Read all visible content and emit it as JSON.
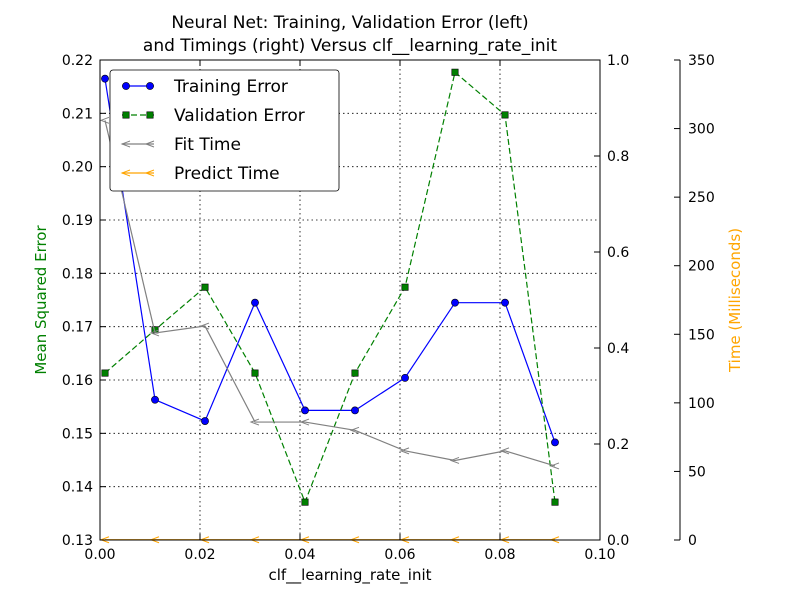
{
  "chart_data": {
    "type": "line",
    "title_line1": "Neural Net: Training, Validation Error (left)",
    "title_line2": "and Timings (right) Versus clf__learning_rate_init",
    "xlabel": "clf__learning_rate_init",
    "ylabel_left": "Mean Squared Error",
    "ylabel_right": "Time (Milliseconds)",
    "xlim": [
      0.0,
      0.1
    ],
    "ylim_left": [
      0.13,
      0.22
    ],
    "ylim_mid": [
      0.0,
      1.0
    ],
    "ylim_right": [
      0,
      350
    ],
    "x_ticks": [
      "0.00",
      "0.02",
      "0.04",
      "0.06",
      "0.08",
      "0.10"
    ],
    "y_left_ticks": [
      "0.13",
      "0.14",
      "0.15",
      "0.16",
      "0.17",
      "0.18",
      "0.19",
      "0.20",
      "0.21",
      "0.22"
    ],
    "y_mid_ticks": [
      "0.0",
      "0.2",
      "0.4",
      "0.6",
      "0.8",
      "1.0"
    ],
    "y_right_ticks": [
      "0",
      "50",
      "100",
      "150",
      "200",
      "250",
      "300",
      "350"
    ],
    "grid": true,
    "legend_position": "top-left",
    "x": [
      0.001,
      0.011,
      0.021,
      0.031,
      0.041,
      0.051,
      0.061,
      0.071,
      0.081,
      0.091
    ],
    "series": [
      {
        "name": "Training Error",
        "axis": "left",
        "color": "#0000ff",
        "marker": "circle",
        "linestyle": "solid",
        "values": [
          0.2165,
          0.1563,
          0.1523,
          0.1745,
          0.1543,
          0.1543,
          0.1604,
          0.1745,
          0.1745,
          0.1483
        ]
      },
      {
        "name": "Validation Error",
        "axis": "left",
        "color": "#008000",
        "marker": "square",
        "linestyle": "dashed",
        "values": [
          0.1613,
          0.1694,
          0.1774,
          0.1613,
          0.1371,
          0.1613,
          0.1774,
          0.2177,
          0.2097,
          0.1371
        ]
      },
      {
        "name": "Fit Time",
        "axis": "right",
        "color": "#808080",
        "marker": "tri",
        "linestyle": "solid",
        "values": [
          306,
          151,
          156,
          86,
          86,
          80,
          65,
          58,
          65,
          54
        ]
      },
      {
        "name": "Predict Time",
        "axis": "right",
        "color": "#ffa500",
        "marker": "tri",
        "linestyle": "solid",
        "values": [
          0.2,
          0.2,
          0.2,
          0.2,
          0.2,
          0.2,
          0.2,
          0.2,
          0.2,
          0.2
        ]
      }
    ],
    "colors": {
      "ylabel_left": "#008000",
      "ylabel_right": "#ffa500"
    }
  }
}
